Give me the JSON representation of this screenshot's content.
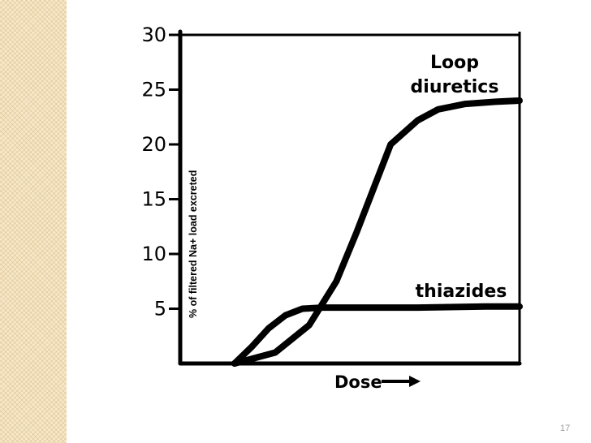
{
  "slide": {
    "number": "17"
  },
  "colors": {
    "band": "#f6e8c9",
    "ink": "#000000",
    "slide_number": "#9c9c9c"
  },
  "chart_data": {
    "type": "line",
    "ylabel": "% of filtered Na+ load excreted",
    "xlabel": "Dose",
    "ylim": [
      0,
      30
    ],
    "yticks": [
      5,
      10,
      15,
      20,
      25,
      30
    ],
    "xticks": [],
    "grid": false,
    "legend": "none",
    "series": [
      {
        "name": "Loop diuretics",
        "label_lines": [
          "Loop",
          "diuretics"
        ],
        "x": [
          0.16,
          0.28,
          0.38,
          0.46,
          0.52,
          0.57,
          0.62,
          0.7,
          0.76,
          0.84,
          0.93,
          1.0
        ],
        "y": [
          0,
          1.0,
          3.5,
          7.5,
          12,
          16,
          20,
          22.2,
          23.2,
          23.7,
          23.9,
          24.0
        ]
      },
      {
        "name": "thiazides",
        "label_lines": [
          "thiazides"
        ],
        "x": [
          0.16,
          0.21,
          0.26,
          0.31,
          0.36,
          0.42,
          0.5,
          0.7,
          0.9,
          1.0
        ],
        "y": [
          0,
          1.5,
          3.2,
          4.4,
          5.0,
          5.1,
          5.1,
          5.1,
          5.2,
          5.2
        ]
      }
    ]
  }
}
